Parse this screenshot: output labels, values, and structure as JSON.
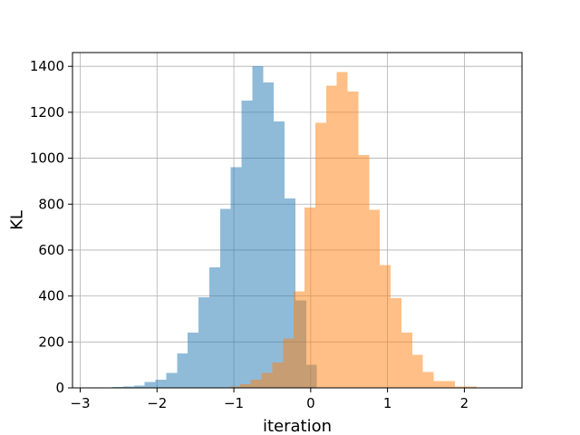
{
  "chart_data": {
    "type": "bar",
    "subtype": "overlapping-histogram",
    "title": "",
    "xlabel": "iteration",
    "ylabel": "KL",
    "xlim": [
      -3.1,
      2.75
    ],
    "ylim": [
      0,
      1460
    ],
    "xticks": [
      -3,
      -2,
      -1,
      0,
      1,
      2
    ],
    "xtick_labels": [
      "−3",
      "−2",
      "−1",
      "0",
      "1",
      "2"
    ],
    "yticks": [
      0,
      200,
      400,
      600,
      800,
      1000,
      1200,
      1400
    ],
    "ytick_labels": [
      "0",
      "200",
      "400",
      "600",
      "800",
      "1000",
      "1200",
      "1400"
    ],
    "grid": true,
    "legend": "none",
    "series": [
      {
        "color": "#1f77b4",
        "alpha": 0.5,
        "bin_width": 0.14,
        "bins": [
          {
            "x0": -2.58,
            "count": 3
          },
          {
            "x0": -2.44,
            "count": 5
          },
          {
            "x0": -2.3,
            "count": 10
          },
          {
            "x0": -2.16,
            "count": 25
          },
          {
            "x0": -2.02,
            "count": 35
          },
          {
            "x0": -1.88,
            "count": 65
          },
          {
            "x0": -1.74,
            "count": 150
          },
          {
            "x0": -1.6,
            "count": 240
          },
          {
            "x0": -1.46,
            "count": 395
          },
          {
            "x0": -1.32,
            "count": 525
          },
          {
            "x0": -1.18,
            "count": 780
          },
          {
            "x0": -1.04,
            "count": 960
          },
          {
            "x0": -0.9,
            "count": 1250
          },
          {
            "x0": -0.76,
            "count": 1400
          },
          {
            "x0": -0.62,
            "count": 1330
          },
          {
            "x0": -0.48,
            "count": 1160
          },
          {
            "x0": -0.34,
            "count": 825
          },
          {
            "x0": -0.2,
            "count": 380
          },
          {
            "x0": -0.06,
            "count": 100
          }
        ]
      },
      {
        "color": "#ff7f0e",
        "alpha": 0.5,
        "bin_width": 0.14,
        "bins": [
          {
            "x0": -1.06,
            "count": 5
          },
          {
            "x0": -0.92,
            "count": 15
          },
          {
            "x0": -0.78,
            "count": 35
          },
          {
            "x0": -0.64,
            "count": 65
          },
          {
            "x0": -0.5,
            "count": 110
          },
          {
            "x0": -0.36,
            "count": 215
          },
          {
            "x0": -0.22,
            "count": 420
          },
          {
            "x0": -0.08,
            "count": 785
          },
          {
            "x0": 0.06,
            "count": 1155
          },
          {
            "x0": 0.2,
            "count": 1315
          },
          {
            "x0": 0.34,
            "count": 1375
          },
          {
            "x0": 0.48,
            "count": 1290
          },
          {
            "x0": 0.62,
            "count": 1015
          },
          {
            "x0": 0.76,
            "count": 775
          },
          {
            "x0": 0.9,
            "count": 535
          },
          {
            "x0": 1.04,
            "count": 390
          },
          {
            "x0": 1.18,
            "count": 240
          },
          {
            "x0": 1.32,
            "count": 145
          },
          {
            "x0": 1.46,
            "count": 70
          },
          {
            "x0": 1.6,
            "count": 30
          },
          {
            "x0": 1.74,
            "count": 30
          },
          {
            "x0": 1.88,
            "count": 5
          },
          {
            "x0": 2.02,
            "count": 5
          }
        ]
      }
    ]
  }
}
